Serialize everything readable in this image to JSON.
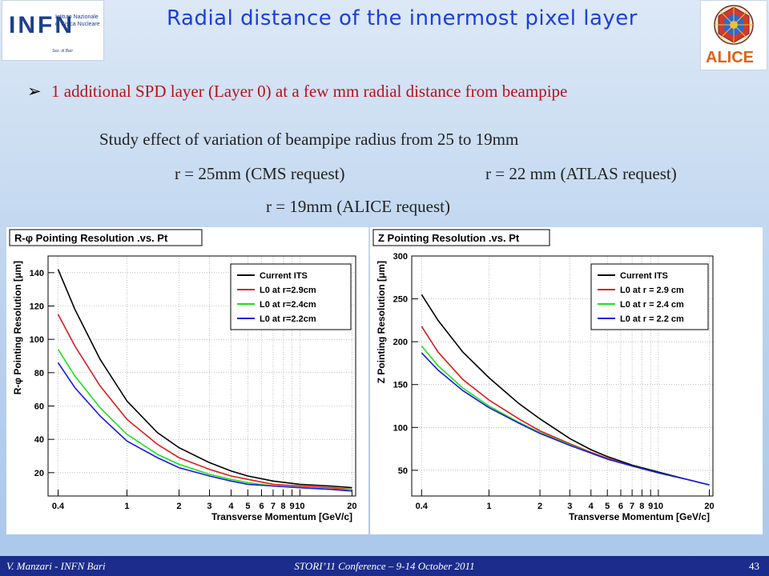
{
  "header": {
    "title": "Radial distance of the innermost pixel layer",
    "logo_left": {
      "main": "INFN",
      "sub1": "Istituto Nazionale",
      "sub2": "di Fisica Nucleare",
      "sez": "Sez. di Bari"
    },
    "logo_right": {
      "text": "ALICE"
    }
  },
  "body": {
    "bullet": "1 additional SPD layer (Layer 0) at a few mm radial distance from beampipe",
    "line1": "Study effect of variation of beampipe radius from 25  to 19mm",
    "line2a": "r =  25mm     (CMS request)",
    "line2b": "r =  22 mm  (ATLAS request)",
    "line3": "r = 19mm      (ALICE request)"
  },
  "footer": {
    "left": "V. Manzari - INFN Bari",
    "center": "STORI’11 Conference – 9-14 October 2011",
    "page": "43"
  },
  "colors": {
    "title": "#1c3fd8",
    "bullet": "#b5121b",
    "footer_bg": "#1b2c8c"
  },
  "chart_data": [
    {
      "type": "line",
      "title": "R-φ Pointing Resolution .vs. Pt",
      "xlabel": "Transverse Momentum [GeV/c]",
      "ylabel": "R-φ Pointing Resolution [μm]",
      "xscale": "log",
      "xlim": [
        0.35,
        21
      ],
      "ylim": [
        6,
        150
      ],
      "xticks": [
        0.4,
        1,
        2,
        3,
        4,
        5,
        6,
        7,
        8,
        9,
        10,
        20
      ],
      "xticklabels": [
        "0.4",
        "1",
        "2",
        "3",
        "4",
        "5",
        "6",
        "7",
        "8",
        "9",
        "10",
        "20"
      ],
      "yticks": [
        20,
        40,
        60,
        80,
        100,
        120,
        140
      ],
      "grid": true,
      "legend_position": "top-right",
      "series": [
        {
          "name": "Current ITS",
          "color": "#000000",
          "x": [
            0.4,
            0.5,
            0.7,
            1,
            1.5,
            2,
            3,
            4,
            5,
            7,
            10,
            15,
            20
          ],
          "y": [
            142,
            118,
            88,
            63,
            44,
            35,
            26,
            21,
            18,
            15,
            13,
            12,
            11
          ]
        },
        {
          "name": "L0 at r=2.9cm",
          "color": "#e0191b",
          "x": [
            0.4,
            0.5,
            0.7,
            1,
            1.5,
            2,
            3,
            4,
            5,
            7,
            10,
            15,
            20
          ],
          "y": [
            115,
            96,
            72,
            52,
            37,
            29,
            22,
            18,
            16,
            13,
            12,
            11,
            10
          ]
        },
        {
          "name": "L0 at r=2.4cm",
          "color": "#1fe01f",
          "x": [
            0.4,
            0.5,
            0.7,
            1,
            1.5,
            2,
            3,
            4,
            5,
            7,
            10,
            15,
            20
          ],
          "y": [
            94,
            78,
            59,
            43,
            31,
            25,
            19,
            16,
            14,
            12,
            11,
            10,
            10
          ]
        },
        {
          "name": "L0 at r=2.2cm",
          "color": "#1a1ae0",
          "x": [
            0.4,
            0.5,
            0.7,
            1,
            1.5,
            2,
            3,
            4,
            5,
            7,
            10,
            15,
            20
          ],
          "y": [
            86,
            71,
            54,
            39,
            29,
            23,
            18,
            15,
            13,
            12,
            11,
            10,
            9
          ]
        }
      ]
    },
    {
      "type": "line",
      "title": "Z Pointing Resolution .vs. Pt",
      "xlabel": "Transverse Momentum [GeV/c]",
      "ylabel": "Z Pointing Resolution [μm]",
      "xscale": "log",
      "xlim": [
        0.35,
        21
      ],
      "ylim": [
        20,
        300
      ],
      "xticks": [
        0.4,
        1,
        2,
        3,
        4,
        5,
        6,
        7,
        8,
        9,
        10,
        20
      ],
      "xticklabels": [
        "0.4",
        "1",
        "2",
        "3",
        "4",
        "5",
        "6",
        "7",
        "8",
        "9",
        "10",
        "20"
      ],
      "yticks": [
        50,
        100,
        150,
        200,
        250,
        300
      ],
      "grid": true,
      "legend_position": "top-right",
      "series": [
        {
          "name": "Current ITS",
          "color": "#000000",
          "x": [
            0.4,
            0.5,
            0.7,
            1,
            1.5,
            2,
            3,
            4,
            5,
            7,
            10,
            15,
            20
          ],
          "y": [
            255,
            225,
            188,
            158,
            128,
            110,
            87,
            74,
            66,
            56,
            48,
            39,
            33
          ]
        },
        {
          "name": "L0 at r = 2.9 cm",
          "color": "#e0191b",
          "x": [
            0.4,
            0.5,
            0.7,
            1,
            1.5,
            2,
            3,
            4,
            5,
            7,
            10,
            15,
            20
          ],
          "y": [
            218,
            188,
            156,
            132,
            110,
            96,
            81,
            71,
            64,
            55,
            47,
            39,
            33
          ]
        },
        {
          "name": "L0 at r = 2.4 cm",
          "color": "#1fe01f",
          "x": [
            0.4,
            0.5,
            0.7,
            1,
            1.5,
            2,
            3,
            4,
            5,
            7,
            10,
            15,
            20
          ],
          "y": [
            195,
            172,
            146,
            125,
            106,
            94,
            80,
            70,
            63,
            55,
            47,
            39,
            33
          ]
        },
        {
          "name": "L0 at r = 2.2 cm",
          "color": "#1a1ae0",
          "x": [
            0.4,
            0.5,
            0.7,
            1,
            1.5,
            2,
            3,
            4,
            5,
            7,
            10,
            15,
            20
          ],
          "y": [
            187,
            167,
            143,
            123,
            105,
            93,
            79,
            70,
            63,
            55,
            47,
            39,
            33
          ]
        }
      ]
    }
  ]
}
